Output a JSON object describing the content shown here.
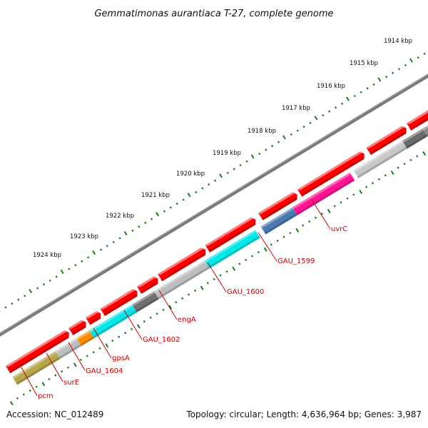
{
  "title": "Gemmatimonas aurantiaca T-27, complete genome",
  "footer": {
    "accession": "Accession: NC_012489",
    "summary": "Topology: circular; Length: 4,636,964 bp; Genes: 3,987"
  },
  "colors": {
    "backbone": "#7a7a7a",
    "tick": "#1a7a1a",
    "label": "#cc0000",
    "forward_gene": "#ff0000"
  },
  "ticks": [
    "1914 kbp",
    "1915 kbp",
    "1916 kbp",
    "1917 kbp",
    "1918 kbp",
    "1919 kbp",
    "1920 kbp",
    "1921 kbp",
    "1922 kbp",
    "1923 kbp",
    "1924 kbp"
  ],
  "genes_labeled": [
    {
      "name": "uvrC",
      "color": "#ff1493"
    },
    {
      "name": "GAU_1599",
      "color": "#4a7bb0"
    },
    {
      "name": "GAU_1600",
      "color": "#00e8e8"
    },
    {
      "name": "engA",
      "color": "#bdbdbd"
    },
    {
      "name": "GAU_1602",
      "color": "#707070"
    },
    {
      "name": "gpsA",
      "color": "#00e8e8"
    },
    {
      "name": "GAU_1604",
      "color": "#ff8c00"
    },
    {
      "name": "surE",
      "color": "#bdbdbd"
    },
    {
      "name": "pcm",
      "color": "#b5a84a"
    }
  ]
}
